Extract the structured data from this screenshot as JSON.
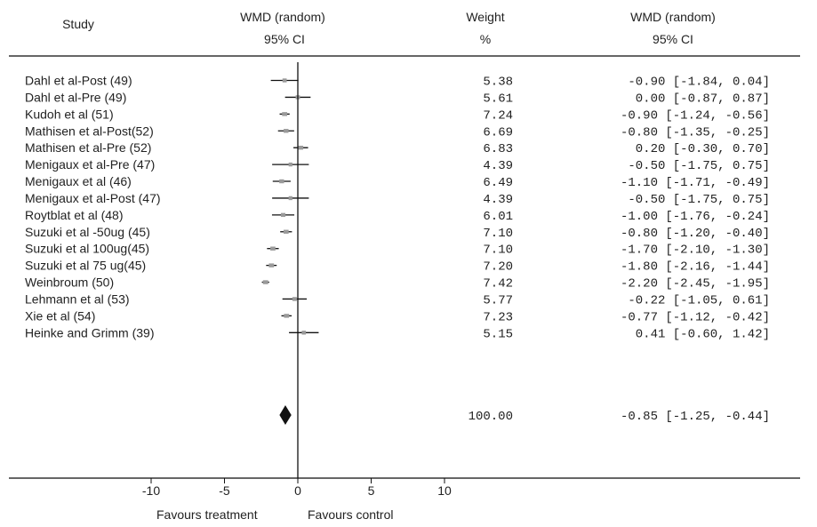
{
  "headers": {
    "study": "Study",
    "wmd_plot_line1": "WMD (random)",
    "wmd_plot_line2": "95% CI",
    "weight_line1": "Weight",
    "weight_line2": "%",
    "wmd_text_line1": "WMD (random)",
    "wmd_text_line2": "95% CI"
  },
  "favours": {
    "left": "Favours treatment",
    "right": "Favours control"
  },
  "chart_data": {
    "type": "forest",
    "x_ticks": [
      "-10",
      "-5",
      "0",
      "5",
      "10"
    ],
    "xlim": [
      -10,
      10
    ],
    "null_line": 0,
    "studies": [
      {
        "name": "Dahl et al-Post (49)",
        "weight": "5.38",
        "ci_text": "-0.90 [-1.84, 0.04]",
        "est": -0.9,
        "lo": -1.84,
        "hi": 0.04
      },
      {
        "name": "Dahl et al-Pre (49)",
        "weight": "5.61",
        "ci_text": "0.00 [-0.87, 0.87]",
        "est": 0.0,
        "lo": -0.87,
        "hi": 0.87
      },
      {
        "name": "Kudoh et al (51)",
        "weight": "7.24",
        "ci_text": "-0.90 [-1.24, -0.56]",
        "est": -0.9,
        "lo": -1.24,
        "hi": -0.56
      },
      {
        "name": "Mathisen et al-Post(52)",
        "weight": "6.69",
        "ci_text": "-0.80 [-1.35, -0.25]",
        "est": -0.8,
        "lo": -1.35,
        "hi": -0.25
      },
      {
        "name": "Mathisen et al-Pre (52)",
        "weight": "6.83",
        "ci_text": "0.20 [-0.30, 0.70]",
        "est": 0.2,
        "lo": -0.3,
        "hi": 0.7
      },
      {
        "name": "Menigaux et al-Pre (47)",
        "weight": "4.39",
        "ci_text": "-0.50 [-1.75, 0.75]",
        "est": -0.5,
        "lo": -1.75,
        "hi": 0.75
      },
      {
        "name": "Menigaux et al (46)",
        "weight": "6.49",
        "ci_text": "-1.10 [-1.71, -0.49]",
        "est": -1.1,
        "lo": -1.71,
        "hi": -0.49
      },
      {
        "name": "Menigaux et al-Post (47)",
        "weight": "4.39",
        "ci_text": "-0.50 [-1.75, 0.75]",
        "est": -0.5,
        "lo": -1.75,
        "hi": 0.75
      },
      {
        "name": "Roytblat et al (48)",
        "weight": "6.01",
        "ci_text": "-1.00 [-1.76, -0.24]",
        "est": -1.0,
        "lo": -1.76,
        "hi": -0.24
      },
      {
        "name": "Suzuki et al -50ug (45)",
        "weight": "7.10",
        "ci_text": "-0.80 [-1.20, -0.40]",
        "est": -0.8,
        "lo": -1.2,
        "hi": -0.4
      },
      {
        "name": "Suzuki et al 100ug(45)",
        "weight": "7.10",
        "ci_text": "-1.70 [-2.10, -1.30]",
        "est": -1.7,
        "lo": -2.1,
        "hi": -1.3
      },
      {
        "name": "Suzuki et al 75 ug(45)",
        "weight": "7.20",
        "ci_text": "-1.80 [-2.16, -1.44]",
        "est": -1.8,
        "lo": -2.16,
        "hi": -1.44
      },
      {
        "name": "Weinbroum (50)",
        "weight": "7.42",
        "ci_text": "-2.20 [-2.45, -1.95]",
        "est": -2.2,
        "lo": -2.45,
        "hi": -1.95
      },
      {
        "name": "Lehmann et al (53)",
        "weight": "5.77",
        "ci_text": "-0.22 [-1.05, 0.61]",
        "est": -0.22,
        "lo": -1.05,
        "hi": 0.61
      },
      {
        "name": "Xie et al (54)",
        "weight": "7.23",
        "ci_text": "-0.77 [-1.12, -0.42]",
        "est": -0.77,
        "lo": -1.12,
        "hi": -0.42
      },
      {
        "name": "Heinke and Grimm (39)",
        "weight": "5.15",
        "ci_text": "0.41 [-0.60, 1.42]",
        "est": 0.41,
        "lo": -0.6,
        "hi": 1.42
      }
    ],
    "pooled": {
      "weight": "100.00",
      "ci_text": "-0.85 [-1.25, -0.44]",
      "est": -0.85,
      "lo": -1.25,
      "hi": -0.44
    }
  }
}
